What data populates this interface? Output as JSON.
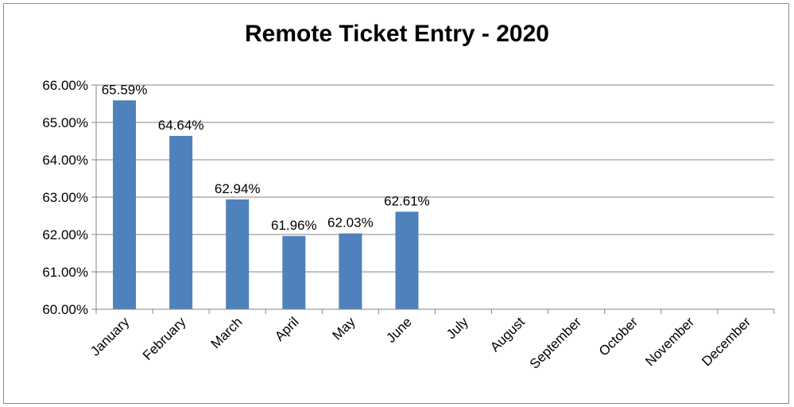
{
  "chart_data": {
    "type": "bar",
    "title": "Remote Ticket Entry - 2020",
    "categories": [
      "January",
      "February",
      "March",
      "April",
      "May",
      "June",
      "July",
      "August",
      "September",
      "October",
      "November",
      "December"
    ],
    "values": [
      65.59,
      64.64,
      62.94,
      61.96,
      62.03,
      62.61,
      null,
      null,
      null,
      null,
      null,
      null
    ],
    "data_labels": [
      "65.59%",
      "64.64%",
      "62.94%",
      "61.96%",
      "62.03%",
      "62.61%",
      null,
      null,
      null,
      null,
      null,
      null
    ],
    "ylim": [
      60,
      66
    ],
    "yticks": [
      60,
      61,
      62,
      63,
      64,
      65,
      66
    ],
    "ytick_labels": [
      "60.00%",
      "61.00%",
      "62.00%",
      "63.00%",
      "64.00%",
      "65.00%",
      "66.00%"
    ],
    "xlabel": "",
    "ylabel": "",
    "grid": true,
    "legend": "none",
    "bar_color": "#4f81bd",
    "gridline_color": "#868686"
  }
}
